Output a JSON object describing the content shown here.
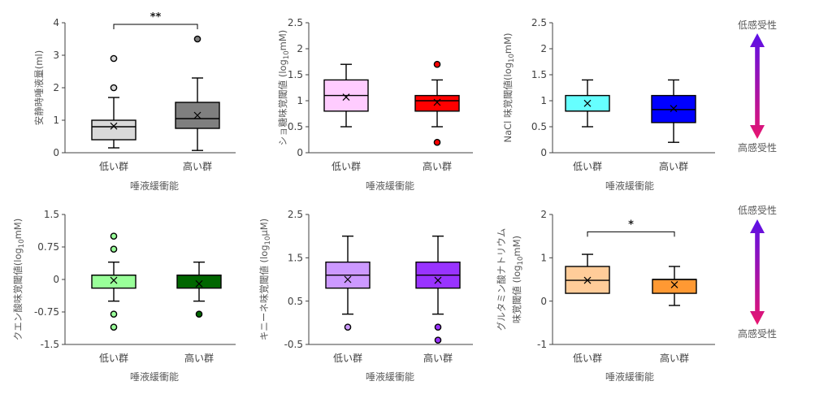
{
  "chart_data": [
    {
      "type": "box",
      "ylabel": [
        [
          {
            "text": "安静時唾液量(ml)"
          }
        ]
      ],
      "xlabel": "唾液緩衝能",
      "categories": [
        "低い群",
        "高い群"
      ],
      "ylim": [
        0,
        4
      ],
      "yticks": [
        0,
        1,
        2,
        3,
        4
      ],
      "boxes": [
        {
          "color": "#d9d9d9",
          "min": 0.15,
          "q1": 0.4,
          "median": 0.8,
          "q3": 1.0,
          "max": 1.7,
          "mean": 0.82,
          "outliers": [
            2.0,
            2.9
          ]
        },
        {
          "color": "#7f7f7f",
          "min": 0.07,
          "q1": 0.75,
          "median": 1.05,
          "q3": 1.55,
          "max": 2.3,
          "mean": 1.15,
          "outliers": [
            3.5
          ]
        }
      ],
      "significance": {
        "label": "**",
        "y": 3.95
      }
    },
    {
      "type": "box",
      "ylabel": [
        [
          {
            "text": "ショ糖味覚閾値 (log"
          },
          {
            "text": "10",
            "sub": true
          },
          {
            "text": "mM)"
          }
        ]
      ],
      "xlabel": "唾液緩衝能",
      "categories": [
        "低い群",
        "高い群"
      ],
      "ylim": [
        0,
        2.5
      ],
      "yticks": [
        0,
        0.5,
        1,
        1.5,
        2,
        2.5
      ],
      "boxes": [
        {
          "color": "#ffccff",
          "min": 0.5,
          "q1": 0.8,
          "median": 1.1,
          "q3": 1.4,
          "max": 1.7,
          "mean": 1.07,
          "outliers": []
        },
        {
          "color": "#ff0000",
          "min": 0.5,
          "q1": 0.8,
          "median": 1.0,
          "q3": 1.1,
          "max": 1.4,
          "mean": 0.97,
          "outliers": [
            1.7,
            0.2
          ]
        }
      ]
    },
    {
      "type": "box",
      "ylabel": [
        [
          {
            "text": "NaCl 味覚閾値(log"
          },
          {
            "text": "10",
            "sub": true
          },
          {
            "text": "mM)"
          }
        ]
      ],
      "xlabel": "唾液緩衝能",
      "categories": [
        "低い群",
        "高い群"
      ],
      "ylim": [
        0,
        2.5
      ],
      "yticks": [
        0,
        0.5,
        1,
        1.5,
        2,
        2.5
      ],
      "boxes": [
        {
          "color": "#66ffff",
          "min": 0.5,
          "q1": 0.8,
          "median": 0.8,
          "q3": 1.1,
          "max": 1.4,
          "mean": 0.95,
          "outliers": []
        },
        {
          "color": "#0000ff",
          "min": 0.2,
          "q1": 0.58,
          "median": 0.83,
          "q3": 1.1,
          "max": 1.4,
          "mean": 0.85,
          "outliers": []
        }
      ]
    },
    {
      "type": "box",
      "ylabel": [
        [
          {
            "text": "クエン酸味覚閾値(log"
          },
          {
            "text": "10",
            "sub": true
          },
          {
            "text": "mM)"
          }
        ]
      ],
      "xlabel": "唾液緩衝能",
      "categories": [
        "低い群",
        "高い群"
      ],
      "ylim": [
        -1.5,
        1.5
      ],
      "yticks": [
        -1.5,
        -0.75,
        0,
        0.75,
        1.5
      ],
      "boxes": [
        {
          "color": "#99ff99",
          "min": -0.5,
          "q1": -0.2,
          "median": 0.1,
          "q3": 0.1,
          "max": 0.4,
          "mean": -0.02,
          "outliers": [
            1.0,
            0.7,
            -0.8,
            -1.1
          ]
        },
        {
          "color": "#006600",
          "min": -0.5,
          "q1": -0.2,
          "median": 0.1,
          "q3": 0.1,
          "max": 0.4,
          "mean": -0.1,
          "outliers": [
            -0.8
          ]
        }
      ]
    },
    {
      "type": "box",
      "ylabel": [
        [
          {
            "text": "キニーネ味覚閾値 (log"
          },
          {
            "text": "10",
            "sub": true
          },
          {
            "text": "μM)"
          }
        ]
      ],
      "xlabel": "唾液緩衝能",
      "categories": [
        "低い群",
        "高い群"
      ],
      "ylim": [
        -0.5,
        2.5
      ],
      "yticks": [
        -0.5,
        0.5,
        1.5,
        2.5
      ],
      "boxes": [
        {
          "color": "#cc99ff",
          "min": 0.2,
          "q1": 0.8,
          "median": 1.1,
          "q3": 1.4,
          "max": 2.0,
          "mean": 1.0,
          "outliers": [
            -0.1
          ]
        },
        {
          "color": "#9933ff",
          "min": 0.2,
          "q1": 0.8,
          "median": 1.1,
          "q3": 1.4,
          "max": 2.0,
          "mean": 0.98,
          "outliers": [
            -0.1,
            -0.4
          ]
        }
      ]
    },
    {
      "type": "box",
      "ylabel": [
        [
          {
            "text": "グルタミン酸ナトリウム"
          }
        ],
        [
          {
            "text": "味覚閾値 (log"
          },
          {
            "text": "10",
            "sub": true
          },
          {
            "text": "mM)"
          }
        ]
      ],
      "xlabel": "唾液緩衝能",
      "categories": [
        "低い群",
        "高い群"
      ],
      "ylim": [
        -1,
        2
      ],
      "yticks": [
        -1,
        0,
        1,
        2
      ],
      "boxes": [
        {
          "color": "#ffcc99",
          "min": 0.18,
          "q1": 0.18,
          "median": 0.48,
          "q3": 0.8,
          "max": 1.08,
          "mean": 0.48,
          "outliers": []
        },
        {
          "color": "#ff9933",
          "min": -0.1,
          "q1": 0.18,
          "median": 0.5,
          "q3": 0.5,
          "max": 0.8,
          "mean": 0.38,
          "outliers": []
        }
      ],
      "significance": {
        "label": "*",
        "y": 1.6
      }
    }
  ],
  "sensitivity_scales": [
    {
      "top_label": "低感受性",
      "bottom_label": "高感受性"
    },
    {
      "top_label": "低感受性",
      "bottom_label": "高感受性"
    }
  ],
  "sensitivity_colors": {
    "top": "#5b10e8",
    "bottom": "#e8156f"
  }
}
